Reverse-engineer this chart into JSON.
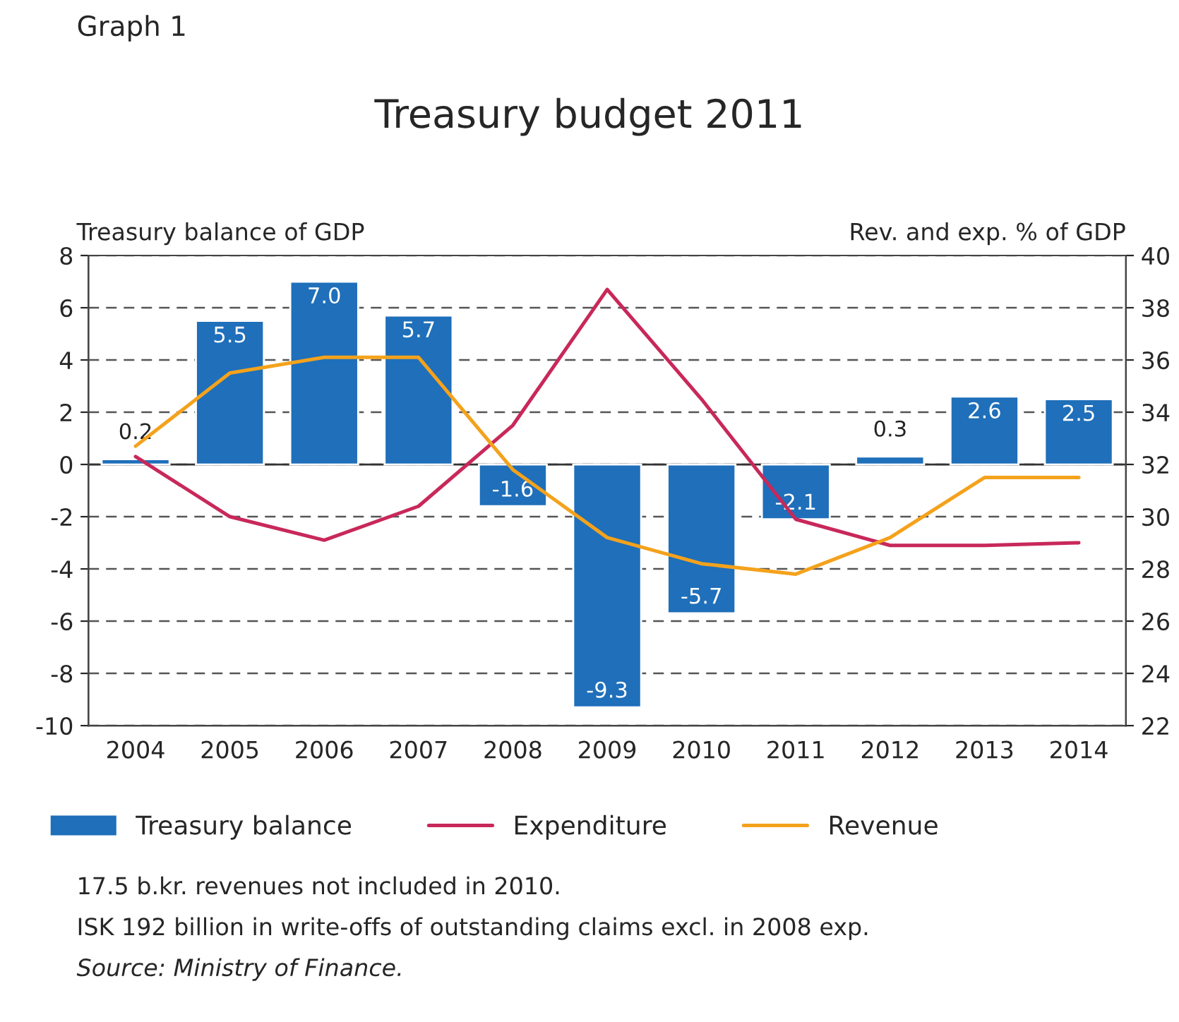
{
  "chart_data": {
    "type": "bar",
    "title": "Treasury budget 2011",
    "ylabel": "Treasury balance of GDP",
    "y2label": "Rev. and exp. % of GDP",
    "categories": [
      "2004",
      "2005",
      "2006",
      "2007",
      "2008",
      "2009",
      "2010",
      "2011",
      "2012",
      "2013",
      "2014"
    ],
    "series": [
      {
        "name": "Treasury balance",
        "color": "#1f6fba",
        "values": [
          0.2,
          5.5,
          7.0,
          5.7,
          -1.6,
          -9.3,
          -5.7,
          -2.1,
          0.3,
          2.6,
          2.5
        ],
        "value_labels": [
          "0.2",
          "5.5",
          "7.0",
          "5.7",
          "-1.6",
          "-9.3",
          "-5.7",
          "-2.1",
          "0.3",
          "2.6",
          "2.5"
        ]
      },
      {
        "name": "Expenditure",
        "type": "line",
        "axis": "y2",
        "color": "#c8285a",
        "values": [
          32.3,
          30.0,
          29.1,
          30.4,
          33.5,
          38.7,
          34.5,
          29.9,
          28.9,
          28.9,
          29.0
        ]
      },
      {
        "name": "Revenue",
        "type": "line",
        "axis": "y2",
        "color": "#f4a21c",
        "values": [
          32.7,
          35.5,
          36.1,
          36.1,
          31.8,
          29.2,
          28.2,
          27.8,
          29.2,
          31.5,
          31.5
        ]
      }
    ],
    "ylim": [
      -10,
      8
    ],
    "yticks": [
      -10,
      -8,
      -6,
      -4,
      -2,
      0,
      2,
      4,
      6,
      8
    ],
    "y2lim": [
      22,
      40
    ],
    "y2ticks": [
      22,
      24,
      26,
      28,
      30,
      32,
      34,
      36,
      38,
      40
    ],
    "grid": "y",
    "legend": "bottom",
    "annotations": [
      "Graph 1",
      "17.5 b.kr. revenues not included in 2010.",
      "ISK 192 billion in write-offs of outstanding claims excl. in 2008 exp.",
      "Source: Ministry of Finance."
    ]
  }
}
